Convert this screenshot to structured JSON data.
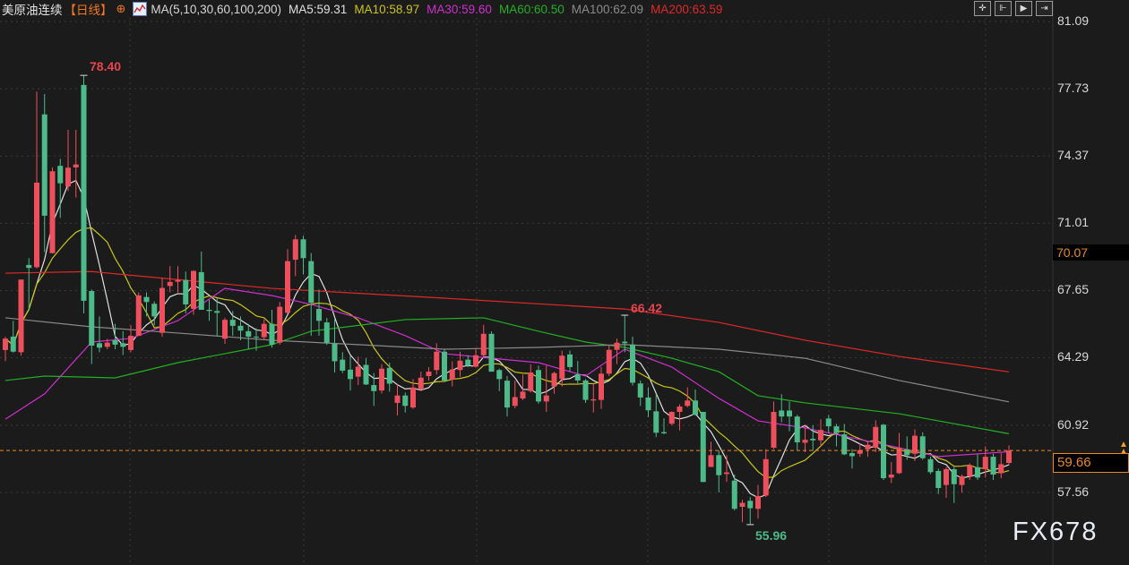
{
  "header": {
    "title": "美原油连续",
    "period": "【日线】",
    "add_icon": "circle-plus-icon",
    "indicator_icon": "chart-icon",
    "ma_params": "MA(5,10,30,60,100,200)",
    "ma_values": [
      {
        "label": "MA5:59.31",
        "color": "#e0e0e0"
      },
      {
        "label": "MA10:58.97",
        "color": "#c8c41a"
      },
      {
        "label": "MA30:59.60",
        "color": "#d02ed0"
      },
      {
        "label": "MA60:60.50",
        "color": "#22b022"
      },
      {
        "label": "MA100:62.09",
        "color": "#8a8a8a"
      },
      {
        "label": "MA200:63.59",
        "color": "#e02828"
      }
    ]
  },
  "toolbar": [
    {
      "icon": "crosshair-icon",
      "glyph": "✛"
    },
    {
      "icon": "zoom-range-icon",
      "glyph": "⊩"
    },
    {
      "icon": "play-icon",
      "glyph": "▶"
    },
    {
      "icon": "exit-icon",
      "glyph": "⇥"
    }
  ],
  "axis": {
    "ticks": [
      "81.09",
      "77.73",
      "74.37",
      "71.01",
      "67.65",
      "64.29",
      "60.92",
      "57.56"
    ],
    "highlight_price": "70.07",
    "last_price": "59.66"
  },
  "annotations": {
    "high": "78.40",
    "mid_high": "66.42",
    "low": "55.96"
  },
  "watermark": "FX678",
  "colors": {
    "up": "#ee4f5c",
    "down": "#4dbb89",
    "background": "#1b1b1b",
    "last_line": "#e88a28"
  },
  "chart_data": {
    "type": "candlestick",
    "ylim": [
      55.5,
      81.09
    ],
    "ohlc_order": [
      "open",
      "high",
      "low",
      "close"
    ],
    "candles": [
      [
        64.68,
        65.35,
        64.13,
        65.25
      ],
      [
        65.35,
        66.14,
        64.55,
        64.6
      ],
      [
        64.57,
        68.2,
        64.4,
        68.2
      ],
      [
        68.93,
        69.27,
        66.66,
        68.78
      ],
      [
        68.82,
        77.59,
        68.75,
        73.04
      ],
      [
        76.45,
        77.47,
        69.57,
        71.39
      ],
      [
        69.52,
        73.8,
        69.5,
        73.61
      ],
      [
        73.88,
        74.23,
        71.28,
        73.01
      ],
      [
        72.85,
        75.68,
        72.62,
        73.79
      ],
      [
        73.8,
        75.68,
        72.3,
        73.95
      ],
      [
        77.92,
        78.4,
        66.51,
        67.14
      ],
      [
        67.63,
        67.7,
        63.98,
        64.9
      ],
      [
        65.02,
        66.36,
        64.57,
        64.8
      ],
      [
        64.84,
        65.24,
        64.72,
        65.05
      ],
      [
        65.17,
        65.99,
        64.72,
        64.95
      ],
      [
        65.02,
        65.62,
        64.43,
        64.84
      ],
      [
        64.68,
        65.92,
        64.57,
        65.39
      ],
      [
        65.39,
        67.56,
        65.39,
        67.41
      ],
      [
        67.33,
        67.56,
        66.36,
        67.08
      ],
      [
        66.99,
        67.11,
        65.92,
        66.36
      ],
      [
        65.54,
        68.27,
        65.35,
        67.78
      ],
      [
        67.88,
        68.87,
        67.56,
        68.08
      ],
      [
        68.09,
        68.87,
        67.56,
        68.18
      ],
      [
        68.18,
        68.6,
        66.51,
        66.96
      ],
      [
        66.74,
        68.67,
        66.44,
        68.63
      ],
      [
        68.57,
        69.6,
        66.69,
        66.69
      ],
      [
        66.69,
        67.18,
        66.14,
        66.63
      ],
      [
        66.63,
        67.26,
        65.35,
        66.54
      ],
      [
        65.25,
        66.29,
        64.99,
        66.19
      ],
      [
        66.19,
        66.63,
        65.39,
        65.89
      ],
      [
        65.89,
        66.36,
        65.17,
        65.65
      ],
      [
        65.62,
        65.99,
        64.72,
        65.35
      ],
      [
        65.35,
        65.77,
        64.65,
        65.32
      ],
      [
        65.32,
        66.21,
        65.17,
        65.99
      ],
      [
        65.99,
        66.69,
        64.8,
        64.95
      ],
      [
        65.05,
        67.08,
        64.95,
        66.84
      ],
      [
        66.54,
        69.72,
        66.51,
        69.12
      ],
      [
        69.19,
        70.43,
        68.37,
        70.21
      ],
      [
        70.21,
        70.39,
        68.45,
        69.27
      ],
      [
        69.12,
        69.52,
        65.39,
        67.04
      ],
      [
        66.73,
        67.7,
        65.39,
        66.14
      ],
      [
        66.06,
        66.28,
        64.94,
        65.05
      ],
      [
        64.99,
        66.21,
        63.56,
        64.12
      ],
      [
        64.2,
        64.57,
        63.53,
        63.65
      ],
      [
        63.7,
        64.42,
        62.66,
        63.23
      ],
      [
        63.35,
        64.35,
        62.93,
        63.85
      ],
      [
        63.94,
        64.27,
        62.93,
        62.96
      ],
      [
        62.93,
        63.53,
        61.89,
        62.63
      ],
      [
        62.66,
        63.97,
        62.51,
        63.75
      ],
      [
        63.79,
        64.05,
        62.6,
        63.0
      ],
      [
        62.04,
        62.96,
        61.41,
        62.41
      ],
      [
        62.41,
        62.56,
        61.56,
        61.89
      ],
      [
        61.81,
        63.23,
        61.74,
        62.81
      ],
      [
        62.71,
        63.6,
        62.63,
        63.3
      ],
      [
        63.38,
        63.82,
        63.15,
        63.6
      ],
      [
        63.68,
        65.02,
        63.45,
        64.6
      ],
      [
        64.6,
        64.72,
        63.08,
        63.15
      ],
      [
        63.2,
        64.12,
        62.86,
        63.71
      ],
      [
        63.68,
        64.6,
        63.35,
        64.15
      ],
      [
        64.2,
        64.42,
        63.82,
        63.9
      ],
      [
        63.85,
        64.79,
        63.82,
        64.42
      ],
      [
        64.42,
        65.94,
        64.35,
        65.49
      ],
      [
        65.49,
        65.61,
        63.6,
        63.6
      ],
      [
        63.68,
        63.75,
        62.63,
        63.23
      ],
      [
        63.15,
        63.38,
        61.36,
        61.81
      ],
      [
        61.89,
        63.15,
        61.77,
        62.33
      ],
      [
        62.26,
        63.45,
        62.18,
        62.6
      ],
      [
        62.63,
        63.97,
        62.56,
        63.56
      ],
      [
        63.68,
        63.9,
        62.0,
        62.11
      ],
      [
        62.11,
        63.9,
        61.59,
        62.41
      ],
      [
        62.86,
        63.6,
        62.49,
        63.53
      ],
      [
        63.23,
        64.65,
        62.86,
        64.4
      ],
      [
        64.46,
        64.65,
        63.6,
        63.83
      ],
      [
        63.46,
        64.13,
        63.01,
        63.16
      ],
      [
        63.16,
        63.23,
        62.04,
        62.19
      ],
      [
        62.16,
        63.01,
        61.56,
        62.22
      ],
      [
        62.19,
        63.83,
        61.74,
        63.5
      ],
      [
        63.5,
        64.95,
        63.38,
        64.69
      ],
      [
        64.69,
        65.25,
        63.98,
        65.05
      ],
      [
        65.1,
        66.42,
        64.57,
        65.02
      ],
      [
        64.95,
        65.35,
        62.91,
        63.05
      ],
      [
        63.01,
        63.16,
        61.89,
        62.31
      ],
      [
        62.31,
        62.82,
        61.33,
        61.67
      ],
      [
        61.62,
        62.49,
        60.33,
        60.55
      ],
      [
        60.58,
        61.27,
        60.48,
        60.52
      ],
      [
        61.0,
        61.62,
        60.92,
        61.59
      ],
      [
        61.59,
        61.97,
        60.67,
        61.86
      ],
      [
        61.89,
        62.82,
        61.82,
        62.16
      ],
      [
        62.16,
        62.71,
        61.41,
        61.44
      ],
      [
        61.59,
        61.59,
        58.09,
        58.09
      ],
      [
        58.84,
        60.1,
        58.84,
        59.43
      ],
      [
        59.43,
        59.66,
        57.57,
        58.43
      ],
      [
        58.49,
        59.43,
        58.09,
        58.57
      ],
      [
        58.16,
        58.46,
        56.67,
        56.75
      ],
      [
        56.85,
        57.2,
        56.08,
        57.05
      ],
      [
        57.15,
        57.34,
        55.96,
        56.78
      ],
      [
        56.75,
        57.94,
        56.26,
        57.39
      ],
      [
        57.41,
        59.73,
        57.34,
        59.23
      ],
      [
        59.8,
        62.11,
        59.73,
        61.59
      ],
      [
        61.66,
        62.48,
        61.07,
        61.36
      ],
      [
        61.66,
        62.11,
        60.62,
        61.36
      ],
      [
        61.36,
        61.44,
        59.65,
        60.07
      ],
      [
        60.05,
        60.92,
        59.58,
        60.2
      ],
      [
        60.25,
        60.92,
        59.65,
        60.17
      ],
      [
        60.17,
        61.22,
        59.87,
        60.69
      ],
      [
        61.26,
        61.44,
        60.54,
        60.87
      ],
      [
        60.87,
        60.99,
        59.87,
        60.54
      ],
      [
        60.47,
        60.99,
        59.43,
        59.47
      ],
      [
        59.53,
        59.73,
        58.76,
        59.38
      ],
      [
        59.5,
        60.02,
        59.35,
        59.68
      ],
      [
        59.72,
        60.1,
        59.35,
        59.95
      ],
      [
        59.8,
        61.17,
        59.58,
        60.84
      ],
      [
        60.95,
        60.99,
        58.19,
        58.28
      ],
      [
        58.31,
        59.08,
        58.04,
        58.46
      ],
      [
        58.53,
        60.54,
        58.49,
        59.8
      ],
      [
        59.72,
        60.37,
        59.2,
        59.43
      ],
      [
        59.5,
        60.72,
        59.13,
        60.4
      ],
      [
        60.37,
        60.57,
        59.2,
        59.28
      ],
      [
        59.23,
        59.35,
        58.49,
        58.58
      ],
      [
        58.64,
        58.76,
        57.49,
        57.79
      ],
      [
        57.94,
        58.83,
        57.3,
        58.73
      ],
      [
        58.73,
        58.83,
        57.04,
        57.98
      ],
      [
        57.94,
        58.46,
        57.56,
        58.38
      ],
      [
        58.38,
        59.02,
        58.19,
        58.93
      ],
      [
        58.83,
        59.47,
        58.19,
        58.31
      ],
      [
        58.73,
        59.87,
        58.31,
        59.35
      ],
      [
        59.35,
        59.5,
        58.19,
        58.46
      ],
      [
        58.53,
        59.53,
        58.28,
        58.98
      ],
      [
        59.04,
        59.92,
        58.93,
        59.66
      ]
    ],
    "moving_averages": [
      {
        "name": "MA5",
        "period": 5,
        "color": "#e0e0e0"
      },
      {
        "name": "MA10",
        "period": 10,
        "color": "#c8c41a"
      },
      {
        "name": "MA30",
        "color": "#d02ed0",
        "points": [
          [
            1,
            61.23
          ],
          [
            6,
            62.49
          ],
          [
            12,
            65.08
          ],
          [
            17,
            65.26
          ],
          [
            23,
            66.15
          ],
          [
            29,
            67.76
          ],
          [
            35,
            67.4
          ],
          [
            40,
            66.96
          ],
          [
            46,
            66.29
          ],
          [
            52,
            65.4
          ],
          [
            57,
            64.5
          ],
          [
            63,
            64.27
          ],
          [
            69,
            64.05
          ],
          [
            75,
            63.38
          ],
          [
            80,
            64.72
          ],
          [
            86,
            63.83
          ],
          [
            92,
            62.27
          ],
          [
            97,
            61.14
          ],
          [
            103,
            60.79
          ],
          [
            115,
            59.8
          ],
          [
            120,
            59.36
          ],
          [
            129,
            59.6
          ]
        ]
      },
      {
        "name": "MA60",
        "color": "#22b022",
        "points": [
          [
            1,
            63.16
          ],
          [
            6,
            63.38
          ],
          [
            15,
            63.29
          ],
          [
            23,
            64.05
          ],
          [
            35,
            64.95
          ],
          [
            40,
            65.62
          ],
          [
            52,
            66.2
          ],
          [
            62,
            66.29
          ],
          [
            69,
            65.62
          ],
          [
            75,
            65.08
          ],
          [
            80,
            64.81
          ],
          [
            86,
            64.27
          ],
          [
            92,
            63.6
          ],
          [
            97,
            62.4
          ],
          [
            103,
            62.04
          ],
          [
            115,
            61.5
          ],
          [
            129,
            60.5
          ]
        ]
      },
      {
        "name": "MA100",
        "color": "#8a8a8a",
        "points": [
          [
            1,
            66.29
          ],
          [
            12,
            65.84
          ],
          [
            23,
            65.53
          ],
          [
            35,
            65.17
          ],
          [
            46,
            64.95
          ],
          [
            57,
            64.72
          ],
          [
            69,
            64.81
          ],
          [
            80,
            64.95
          ],
          [
            92,
            64.72
          ],
          [
            103,
            64.27
          ],
          [
            115,
            63.16
          ],
          [
            129,
            62.09
          ]
        ]
      },
      {
        "name": "MA200",
        "color": "#e02828",
        "points": [
          [
            1,
            68.52
          ],
          [
            12,
            68.6
          ],
          [
            35,
            67.76
          ],
          [
            57,
            67.27
          ],
          [
            80,
            66.73
          ],
          [
            92,
            66.06
          ],
          [
            103,
            65.17
          ],
          [
            115,
            64.36
          ],
          [
            129,
            63.59
          ]
        ]
      }
    ]
  }
}
